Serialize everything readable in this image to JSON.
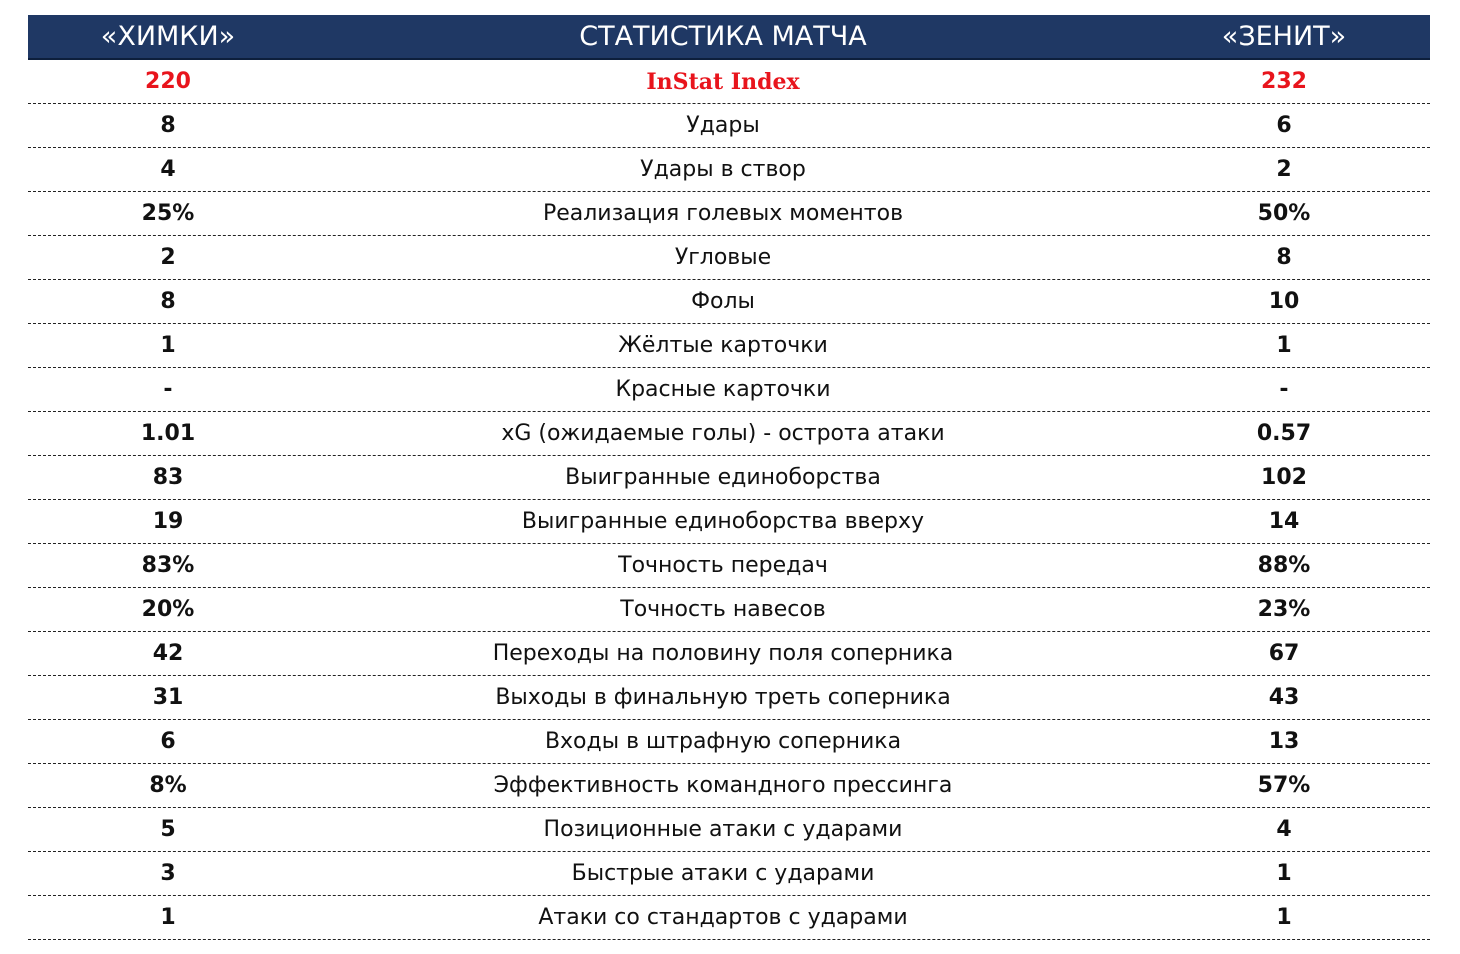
{
  "header": {
    "left": "«ХИМКИ»",
    "title": "СТАТИСТИКА МАТЧА",
    "right": "«ЗЕНИТ»"
  },
  "table": {
    "rows": [
      [
        "220",
        "InStat Index",
        "232"
      ],
      [
        "8",
        "Удары",
        "6"
      ],
      [
        "4",
        "Удары в створ",
        "2"
      ],
      [
        "25%",
        "Реализация голевых моментов",
        "50%"
      ],
      [
        "2",
        "Угловые",
        "8"
      ],
      [
        "8",
        "Фолы",
        "10"
      ],
      [
        "1",
        "Жёлтые карточки",
        "1"
      ],
      [
        "-",
        "Красные карточки",
        "-"
      ],
      [
        "1.01",
        "xG (ожидаемые голы) - острота атаки",
        "0.57"
      ],
      [
        "83",
        "Выигранные единоборства",
        "102"
      ],
      [
        "19",
        "Выигранные единоборства вверху",
        "14"
      ],
      [
        "83%",
        "Точность передач",
        "88%"
      ],
      [
        "20%",
        "Точность навесов",
        "23%"
      ],
      [
        "42",
        "Переходы на половину поля соперника",
        "67"
      ],
      [
        "31",
        "Выходы в финальную треть соперника",
        "43"
      ],
      [
        "6",
        "Входы в штрафную соперника",
        "13"
      ],
      [
        "8%",
        "Эффективность командного прессинга",
        "57%"
      ],
      [
        "5",
        "Позиционные атаки с ударами",
        "4"
      ],
      [
        "3",
        "Быстрые атаки с ударами",
        "1"
      ],
      [
        "1",
        "Атаки со стандартов с ударами",
        "1"
      ]
    ]
  }
}
